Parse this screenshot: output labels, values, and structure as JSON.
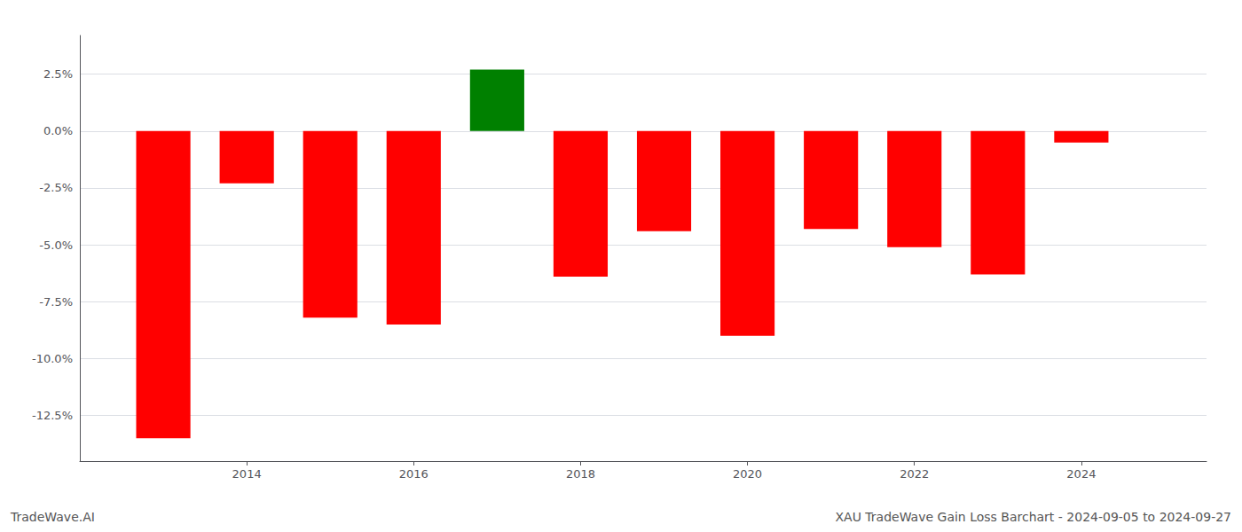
{
  "chart_data": {
    "type": "bar",
    "x": [
      2013,
      2014,
      2015,
      2016,
      2017,
      2018,
      2019,
      2020,
      2021,
      2022,
      2023,
      2024
    ],
    "values": [
      -13.5,
      -2.3,
      -8.2,
      -8.5,
      2.7,
      -6.4,
      -4.4,
      -9.0,
      -4.3,
      -5.1,
      -6.3,
      -0.5
    ],
    "colors": [
      "#ff0000",
      "#ff0000",
      "#ff0000",
      "#ff0000",
      "#008000",
      "#ff0000",
      "#ff0000",
      "#ff0000",
      "#ff0000",
      "#ff0000",
      "#ff0000",
      "#ff0000"
    ],
    "xlim": [
      2012.0,
      2025.5
    ],
    "xticks": [
      2014,
      2016,
      2018,
      2020,
      2022,
      2024
    ],
    "ylim": [
      -14.5,
      4.2
    ],
    "yticks": [
      {
        "value": 2.5,
        "label": "2.5%"
      },
      {
        "value": 0.0,
        "label": "0.0%"
      },
      {
        "value": -2.5,
        "label": "-2.5%"
      },
      {
        "value": -5.0,
        "label": "-5.0%"
      },
      {
        "value": -7.5,
        "label": "-7.5%"
      },
      {
        "value": -10.0,
        "label": "-10.0%"
      },
      {
        "value": -12.5,
        "label": "-12.5%"
      }
    ],
    "grid": true,
    "annotations": [
      "TradeWave.AI",
      "XAU TradeWave Gain Loss Barchart - 2024-09-05 to 2024-09-27"
    ]
  }
}
